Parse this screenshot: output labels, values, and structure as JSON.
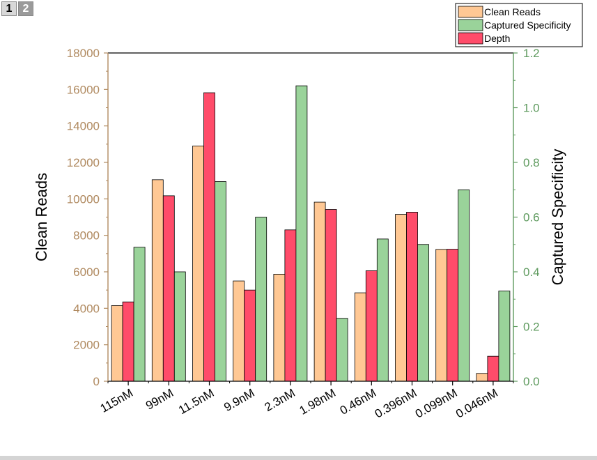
{
  "page_tabs": [
    {
      "label": "1",
      "active": true
    },
    {
      "label": "2",
      "active": false
    }
  ],
  "chart_data": {
    "type": "bar",
    "categories": [
      "115nM",
      "99nM",
      "11.5nM",
      "9.9nM",
      "2.3nM",
      "1.98nM",
      "0.46nM",
      "0.396nM",
      "0.099nM",
      "0.046nM"
    ],
    "series": [
      {
        "name": "Clean Reads",
        "axis": "left",
        "color": "#FFC894",
        "values": [
          4150,
          11050,
          12900,
          5500,
          5870,
          9820,
          4850,
          9150,
          7230,
          430
        ]
      },
      {
        "name": "Depth",
        "axis": "left",
        "color": "#FF4C6A",
        "values": [
          4350,
          10170,
          15820,
          5000,
          8300,
          9420,
          6060,
          9270,
          7240,
          1370
        ]
      },
      {
        "name": "Captured Specificity",
        "axis": "right",
        "color": "#9AD39A",
        "values": [
          0.49,
          0.4,
          0.73,
          0.6,
          1.08,
          0.23,
          0.52,
          0.5,
          0.7,
          0.33
        ]
      }
    ],
    "bar_order": [
      "Clean Reads",
      "Depth",
      "Captured Specificity"
    ],
    "legend": {
      "placement": "top-right",
      "entries": [
        {
          "label": "Clean Reads",
          "color": "#FFC894"
        },
        {
          "label": "Captured Specificity",
          "color": "#9AD39A"
        },
        {
          "label": "Depth",
          "color": "#FF4C6A"
        }
      ]
    },
    "ylabel": "Clean Reads",
    "y2label": "Captured Specificity",
    "ylim": [
      0,
      18000
    ],
    "yticks": [
      0,
      2000,
      4000,
      6000,
      8000,
      10000,
      12000,
      14000,
      16000,
      18000
    ],
    "y2lim": [
      0,
      1.2
    ],
    "y2ticks": [
      "0.0",
      "0.2",
      "0.4",
      "0.6",
      "0.8",
      "1.0",
      "1.2"
    ],
    "left_axis_color": "#B08A60",
    "right_axis_color": "#5E9A5E",
    "grid": false
  }
}
